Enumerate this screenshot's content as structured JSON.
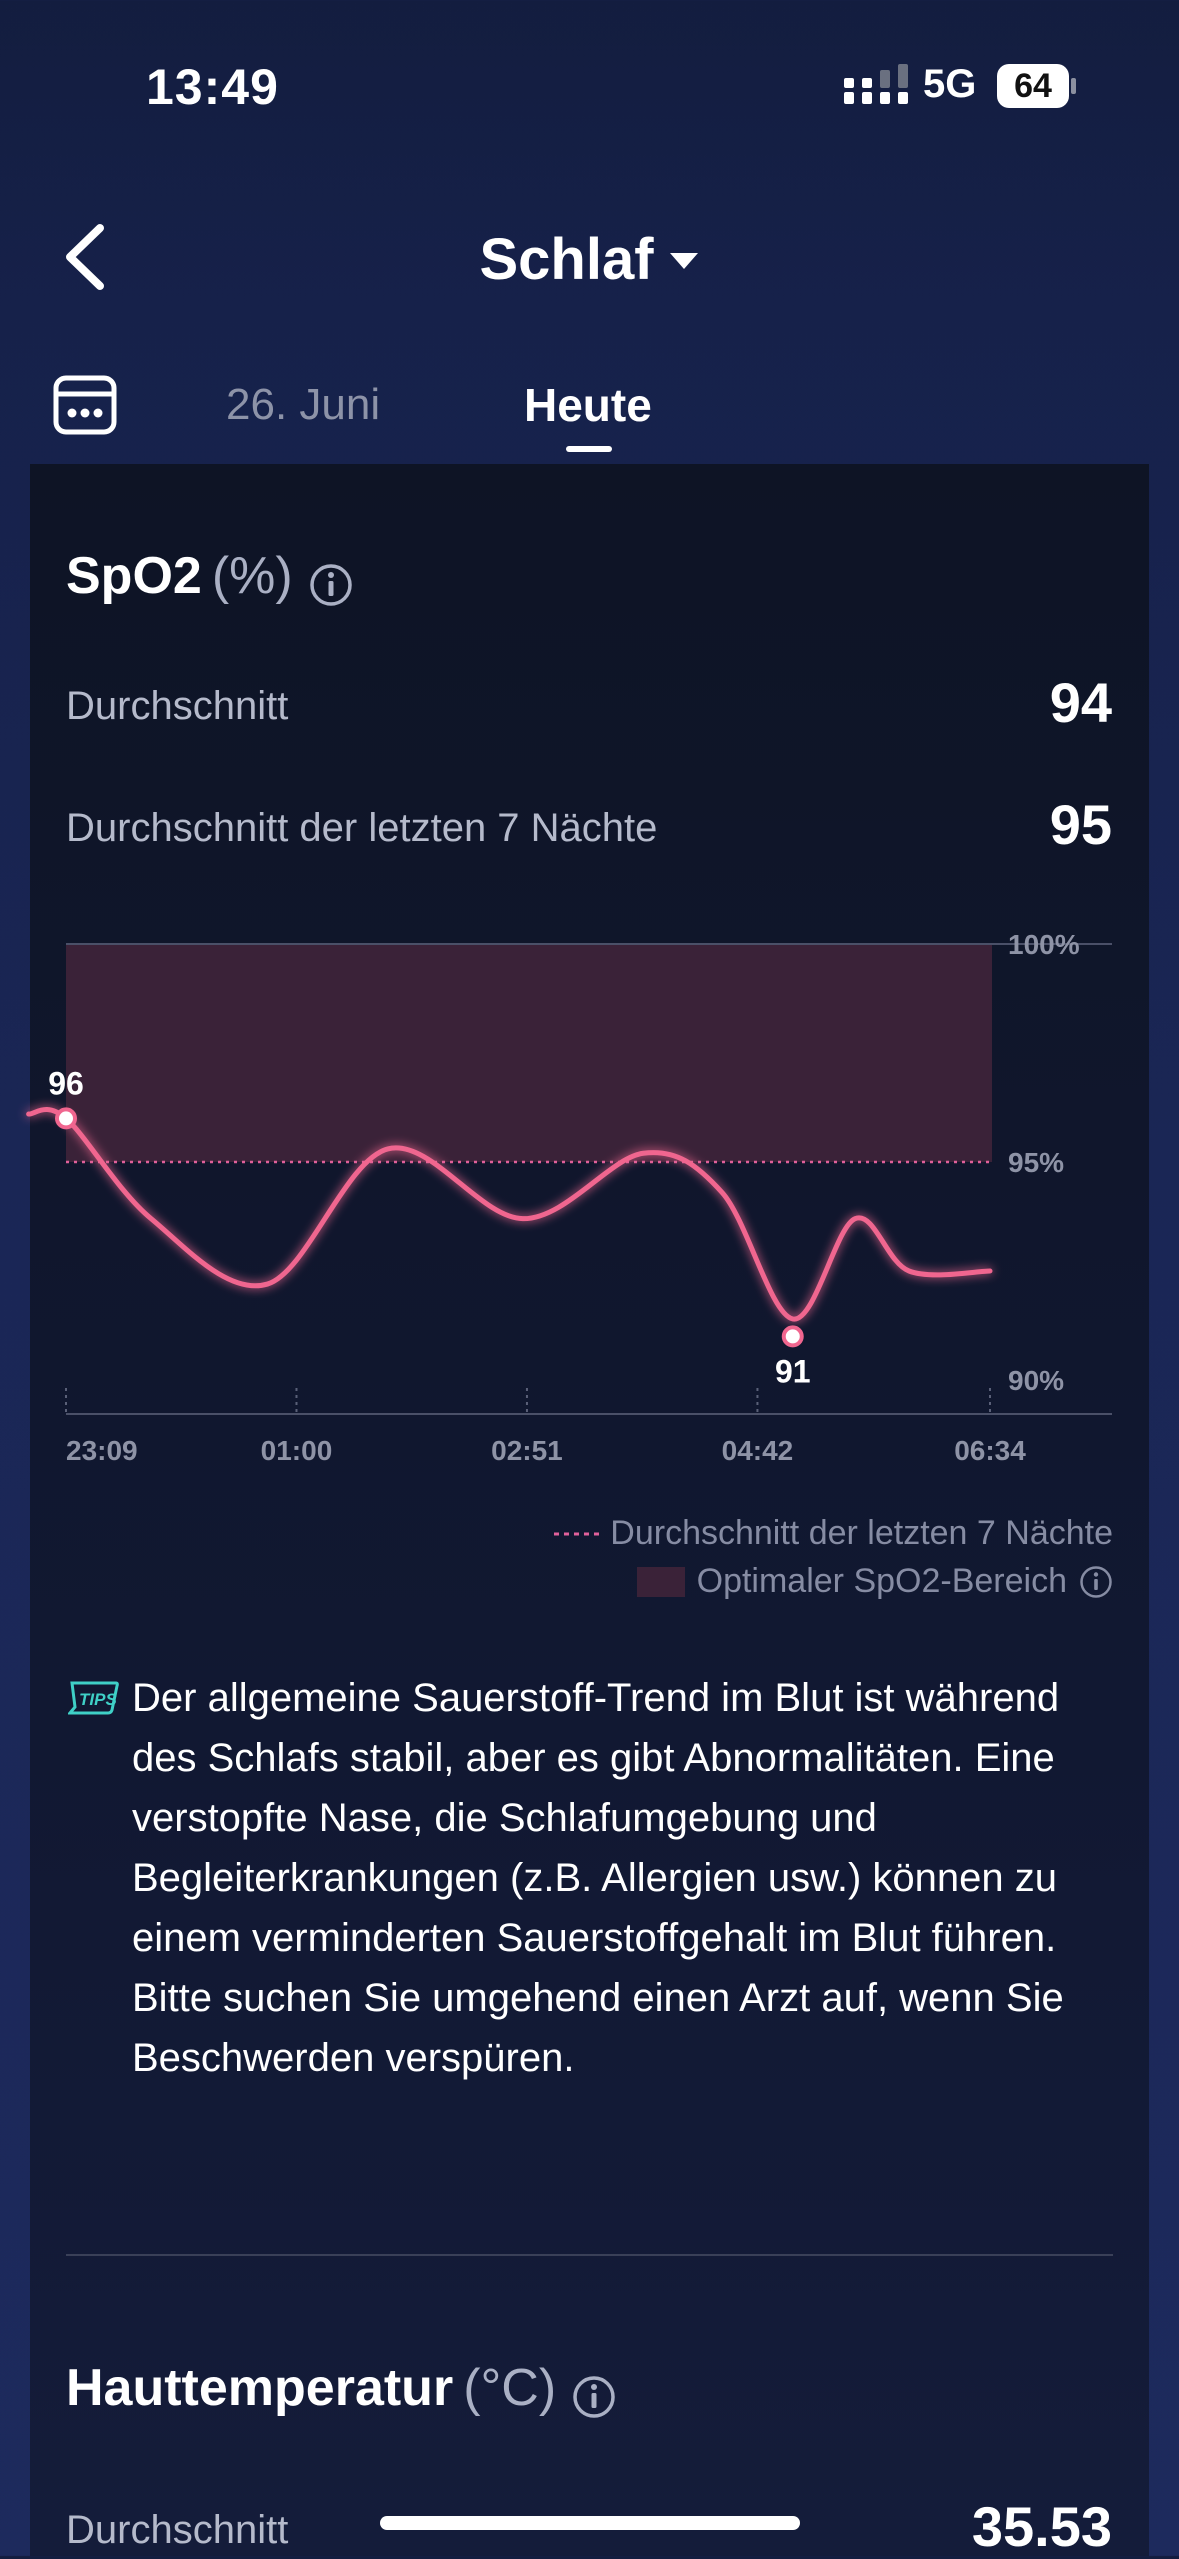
{
  "status_bar": {
    "time": "13:49",
    "network": "5G",
    "battery": "64"
  },
  "header": {
    "title": "Schlaf"
  },
  "tabs": {
    "previous": "26. Juni",
    "current": "Heute"
  },
  "spo2": {
    "title": "SpO2",
    "unit": "(%)",
    "avg_label": "Durchschnitt",
    "avg_value": "94",
    "avg7_label": "Durchschnitt der letzten 7 Nächte",
    "avg7_value": "95",
    "legend_avg7": "Durchschnitt der letzten 7 Nächte",
    "legend_optimal": "Optimaler SpO2-Bereich",
    "tip": "Der allgemeine Sauerstoff-Trend im Blut ist während des Schlafs stabil, aber es gibt Abnormalitäten. Eine verstopfte Nase, die Schlafumgebung und Begleiterkrankungen (z.B. Allergien usw.) können zu einem verminderten Sauerstoffgehalt im Blut führen. Bitte suchen Sie umgehend einen Arzt auf, wenn Sie Beschwerden verspüren."
  },
  "chart_data": {
    "type": "line",
    "x_ticks": [
      "23:09",
      "01:00",
      "02:51",
      "04:42",
      "06:34"
    ],
    "y_ticks": [
      "100%",
      "95%",
      "90%"
    ],
    "ylim": [
      90,
      100
    ],
    "series": [
      {
        "x": [
          "22:51",
          "23:09",
          "23:50",
          "00:46",
          "01:44",
          "02:49",
          "03:47",
          "04:25",
          "04:59",
          "05:29",
          "05:55",
          "06:34"
        ],
        "values": [
          96.1,
          96.0,
          93.7,
          92.2,
          95.3,
          93.7,
          95.2,
          94.3,
          91.4,
          93.7,
          92.5,
          92.5
        ]
      }
    ],
    "avg7_line": 95,
    "optimal_range": [
      95,
      100
    ],
    "annotations": [
      {
        "x": "23:09",
        "y": 96,
        "label": "96"
      },
      {
        "x": "04:59",
        "y": 91,
        "label": "91"
      }
    ],
    "colors": {
      "line": "#f0668f",
      "optimal_band": "#3a2238",
      "avg_line": "#e0609a"
    }
  },
  "skin_temp": {
    "title": "Hauttemperatur",
    "unit": "(°C)",
    "avg_label": "Durchschnitt",
    "avg_value": "35.53"
  }
}
